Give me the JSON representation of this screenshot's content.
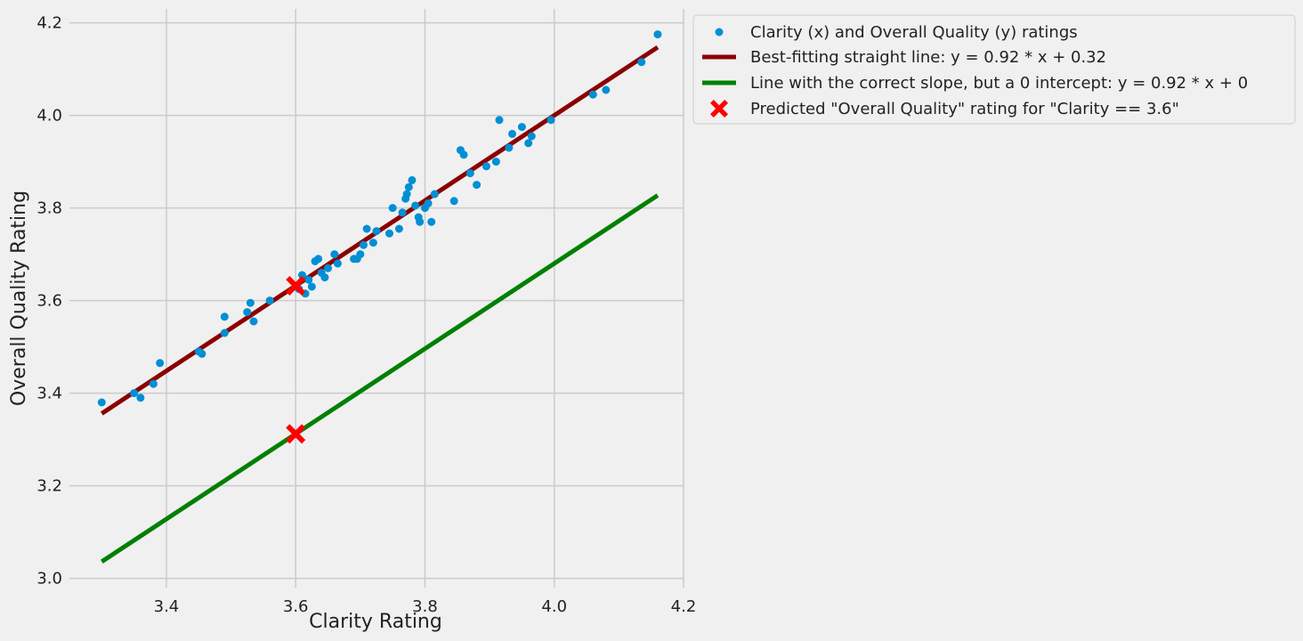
{
  "chart_data": {
    "type": "scatter",
    "title": "",
    "xlabel": "Clarity Rating",
    "ylabel": "Overall Quality Rating",
    "xlim": [
      3.25,
      4.2
    ],
    "ylim": [
      2.98,
      4.23
    ],
    "grid": true,
    "x_ticks": [
      "3.4",
      "3.6",
      "3.8",
      "4.0",
      "4.2"
    ],
    "y_ticks": [
      "3.0",
      "3.2",
      "3.4",
      "3.6",
      "3.8",
      "4.0",
      "4.2"
    ],
    "legend_position": "outside-top-right",
    "colors": {
      "background": "#f0f0f0",
      "grid": "#cbcbcb",
      "scatter": "#008fd5",
      "best_fit": "#8b0000",
      "zero_intercept": "#008000",
      "prediction": "#ff0000"
    },
    "series": [
      {
        "name": "Clarity (x) and Overall Quality (y) ratings",
        "kind": "scatter",
        "points": [
          [
            3.3,
            3.38
          ],
          [
            3.35,
            3.4
          ],
          [
            3.36,
            3.39
          ],
          [
            3.38,
            3.42
          ],
          [
            3.39,
            3.465
          ],
          [
            3.45,
            3.49
          ],
          [
            3.455,
            3.485
          ],
          [
            3.49,
            3.565
          ],
          [
            3.49,
            3.53
          ],
          [
            3.525,
            3.575
          ],
          [
            3.53,
            3.595
          ],
          [
            3.535,
            3.555
          ],
          [
            3.56,
            3.6
          ],
          [
            3.6,
            3.63
          ],
          [
            3.605,
            3.625
          ],
          [
            3.61,
            3.655
          ],
          [
            3.615,
            3.615
          ],
          [
            3.62,
            3.645
          ],
          [
            3.625,
            3.63
          ],
          [
            3.63,
            3.685
          ],
          [
            3.635,
            3.69
          ],
          [
            3.64,
            3.66
          ],
          [
            3.645,
            3.65
          ],
          [
            3.65,
            3.67
          ],
          [
            3.66,
            3.7
          ],
          [
            3.665,
            3.68
          ],
          [
            3.69,
            3.69
          ],
          [
            3.695,
            3.69
          ],
          [
            3.7,
            3.7
          ],
          [
            3.705,
            3.72
          ],
          [
            3.71,
            3.755
          ],
          [
            3.72,
            3.725
          ],
          [
            3.725,
            3.75
          ],
          [
            3.745,
            3.745
          ],
          [
            3.75,
            3.8
          ],
          [
            3.76,
            3.755
          ],
          [
            3.765,
            3.79
          ],
          [
            3.77,
            3.82
          ],
          [
            3.772,
            3.83
          ],
          [
            3.775,
            3.845
          ],
          [
            3.78,
            3.86
          ],
          [
            3.785,
            3.805
          ],
          [
            3.79,
            3.78
          ],
          [
            3.792,
            3.77
          ],
          [
            3.8,
            3.8
          ],
          [
            3.805,
            3.81
          ],
          [
            3.81,
            3.77
          ],
          [
            3.815,
            3.83
          ],
          [
            3.845,
            3.815
          ],
          [
            3.855,
            3.925
          ],
          [
            3.86,
            3.915
          ],
          [
            3.87,
            3.875
          ],
          [
            3.88,
            3.85
          ],
          [
            3.895,
            3.89
          ],
          [
            3.91,
            3.9
          ],
          [
            3.915,
            3.99
          ],
          [
            3.93,
            3.93
          ],
          [
            3.935,
            3.96
          ],
          [
            3.95,
            3.975
          ],
          [
            3.96,
            3.94
          ],
          [
            3.965,
            3.955
          ],
          [
            3.995,
            3.99
          ],
          [
            4.06,
            4.045
          ],
          [
            4.08,
            4.055
          ],
          [
            4.135,
            4.115
          ],
          [
            4.16,
            4.175
          ]
        ]
      },
      {
        "name": "Best-fitting straight line:  y = 0.92 * x + 0.32",
        "kind": "line",
        "slope": 0.92,
        "intercept": 0.32,
        "x_range": [
          3.3,
          4.16
        ]
      },
      {
        "name": "Line with the correct slope, but a 0 intercept: y = 0.92 * x + 0",
        "kind": "line",
        "slope": 0.92,
        "intercept": 0,
        "x_range": [
          3.3,
          4.16
        ]
      },
      {
        "name": "Predicted \"Overall Quality\" rating for \"Clarity == 3.6\"",
        "kind": "marker",
        "points": [
          [
            3.6,
            3.632
          ],
          [
            3.6,
            3.312
          ]
        ]
      }
    ]
  }
}
